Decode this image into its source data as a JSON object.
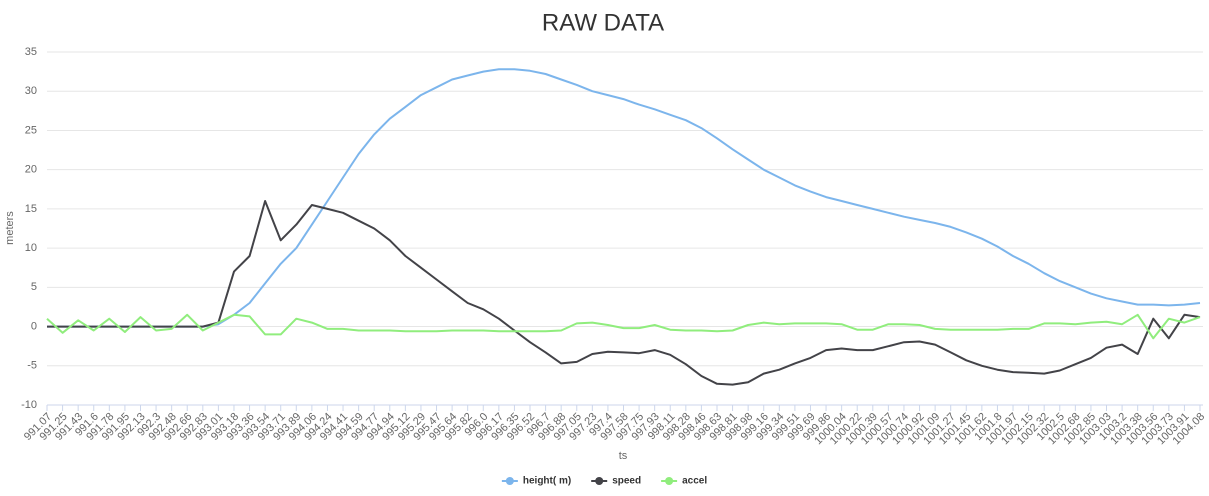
{
  "chart_data": {
    "type": "line",
    "title": "RAW DATA",
    "y_label": "meters",
    "x_label": "ts",
    "categories": [
      "991.07",
      "991.25",
      "991.43",
      "991.6",
      "991.78",
      "991.95",
      "992.13",
      "992.3",
      "992.48",
      "992.66",
      "992.83",
      "993.01",
      "993.18",
      "993.36",
      "993.54",
      "993.71",
      "993.89",
      "994.06",
      "994.24",
      "994.41",
      "994.59",
      "994.77",
      "994.94",
      "995.12",
      "995.29",
      "995.47",
      "995.64",
      "995.82",
      "996.0",
      "996.17",
      "996.35",
      "996.52",
      "996.7",
      "996.88",
      "997.05",
      "997.23",
      "997.4",
      "997.58",
      "997.75",
      "997.93",
      "998.11",
      "998.28",
      "998.46",
      "998.63",
      "998.81",
      "998.98",
      "999.16",
      "999.34",
      "999.51",
      "999.69",
      "999.86",
      "1000.04",
      "1000.22",
      "1000.39",
      "1000.57",
      "1000.74",
      "1000.92",
      "1001.09",
      "1001.27",
      "1001.45",
      "1001.62",
      "1001.8",
      "1001.97",
      "1002.15",
      "1002.32",
      "1002.5",
      "1002.68",
      "1002.85",
      "1003.03",
      "1003.2",
      "1003.38",
      "1003.56",
      "1003.73",
      "1003.91",
      "1004.08"
    ],
    "series": [
      {
        "name": "height( m)",
        "color": "#7cb5ec",
        "values": [
          0,
          0,
          0,
          0,
          0,
          0,
          0,
          0,
          0,
          0,
          0,
          0.3,
          1.5,
          3,
          5.5,
          8,
          10,
          13,
          16,
          19,
          22,
          24.5,
          26.5,
          28,
          29.5,
          30.5,
          31.5,
          32,
          32.5,
          32.8,
          32.8,
          32.6,
          32.2,
          31.5,
          30.8,
          30,
          29.5,
          29,
          28.3,
          27.7,
          27,
          26.3,
          25.3,
          24,
          22.6,
          21.3,
          20,
          19,
          18,
          17.2,
          16.5,
          16,
          15.5,
          15,
          14.5,
          14,
          13.6,
          13.2,
          12.7,
          12,
          11.2,
          10.2,
          9,
          8,
          6.8,
          5.8,
          5,
          4.2,
          3.6,
          3.2,
          2.8,
          2.8,
          2.7,
          2.8,
          3.0
        ]
      },
      {
        "name": "speed",
        "color": "#434348",
        "values": [
          0,
          0,
          0,
          0,
          0,
          0,
          0,
          0,
          0,
          0,
          0,
          0.5,
          7,
          9,
          16,
          11,
          13,
          15.5,
          15,
          14.5,
          13.5,
          12.5,
          11,
          9,
          7.5,
          6,
          4.5,
          3,
          2.2,
          1,
          -0.5,
          -2,
          -3.3,
          -4.7,
          -4.5,
          -3.5,
          -3.2,
          -3.3,
          -3.4,
          -3.0,
          -3.6,
          -4.8,
          -6.3,
          -7.3,
          -7.4,
          -7.1,
          -6.0,
          -5.5,
          -4.7,
          -4.0,
          -3.0,
          -2.8,
          -3.0,
          -3.0,
          -2.5,
          -2.0,
          -1.9,
          -2.3,
          -3.3,
          -4.3,
          -5.0,
          -5.5,
          -5.8,
          -5.9,
          -6.0,
          -5.6,
          -4.8,
          -4.0,
          -2.7,
          -2.3,
          -3.5,
          1.0,
          -1.5,
          1.5,
          1.2
        ]
      },
      {
        "name": "accel",
        "color": "#90ed7d",
        "values": [
          1,
          -0.8,
          0.8,
          -0.5,
          1,
          -0.7,
          1.2,
          -0.5,
          -0.3,
          1.5,
          -0.5,
          0.5,
          1.5,
          1.3,
          -1.0,
          -1.0,
          1.0,
          0.5,
          -0.3,
          -0.3,
          -0.5,
          -0.5,
          -0.5,
          -0.6,
          -0.6,
          -0.6,
          -0.5,
          -0.5,
          -0.5,
          -0.6,
          -0.6,
          -0.6,
          -0.6,
          -0.5,
          0.4,
          0.5,
          0.2,
          -0.2,
          -0.2,
          0.2,
          -0.4,
          -0.5,
          -0.5,
          -0.6,
          -0.5,
          0.2,
          0.5,
          0.3,
          0.4,
          0.4,
          0.4,
          0.3,
          -0.4,
          -0.4,
          0.3,
          0.3,
          0.2,
          -0.3,
          -0.4,
          -0.4,
          -0.4,
          -0.4,
          -0.3,
          -0.3,
          0.4,
          0.4,
          0.3,
          0.5,
          0.6,
          0.3,
          1.5,
          -1.5,
          1.0,
          0.5,
          1.2
        ]
      }
    ],
    "ylim": [
      -10,
      35
    ],
    "yticks": [
      -10,
      -5,
      0,
      5,
      10,
      15,
      20,
      25,
      30,
      35
    ],
    "grid": true,
    "legend": "bottom"
  }
}
